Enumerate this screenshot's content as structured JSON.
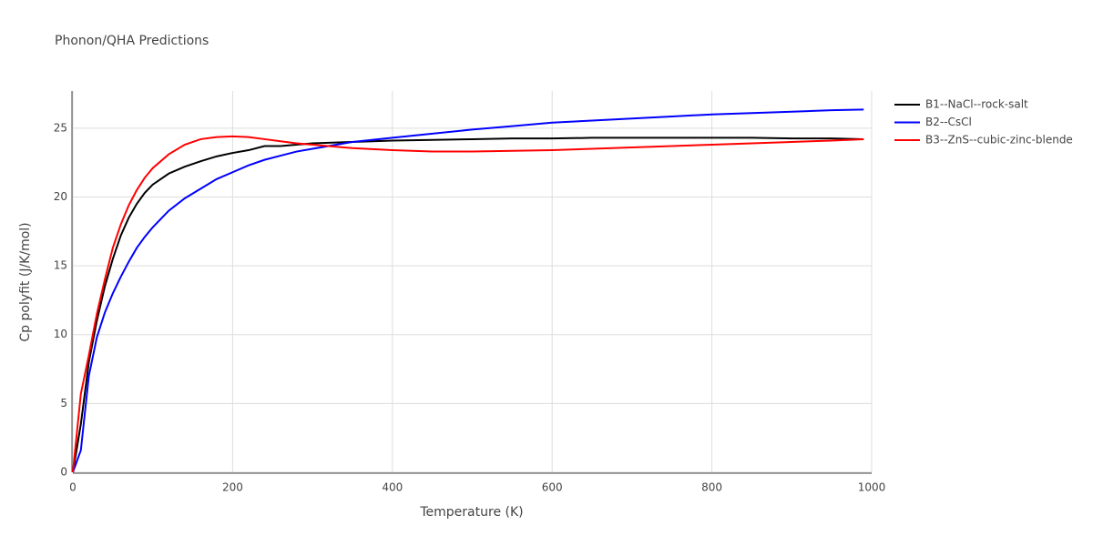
{
  "chart_data": {
    "type": "line",
    "title": "Phonon/QHA Predictions",
    "x_label": "Temperature (K)",
    "y_label": "Cp polyfit (J/K/mol)",
    "x": [
      0,
      10,
      20,
      30,
      40,
      50,
      60,
      70,
      80,
      90,
      100,
      120,
      140,
      160,
      180,
      200,
      220,
      240,
      260,
      280,
      300,
      350,
      400,
      450,
      500,
      550,
      600,
      650,
      700,
      750,
      800,
      850,
      900,
      950,
      990
    ],
    "series": [
      {
        "name": "B1--NaCl--rock-salt",
        "color": "#000000",
        "values": [
          0,
          3.5,
          8,
          11,
          13.5,
          15.5,
          17.2,
          18.5,
          19.5,
          20.3,
          20.9,
          21.7,
          22.2,
          22.6,
          22.95,
          23.2,
          23.4,
          23.7,
          23.7,
          23.8,
          23.9,
          24.0,
          24.1,
          24.15,
          24.2,
          24.25,
          24.25,
          24.3,
          24.3,
          24.3,
          24.3,
          24.3,
          24.25,
          24.25,
          24.2
        ]
      },
      {
        "name": "B2--CsCl",
        "color": "#0000ff",
        "values": [
          0,
          1.6,
          7,
          9.8,
          11.6,
          13,
          14.2,
          15.3,
          16.3,
          17.1,
          17.8,
          19.0,
          19.9,
          20.6,
          21.3,
          21.8,
          22.3,
          22.7,
          23.0,
          23.3,
          23.5,
          24.0,
          24.3,
          24.6,
          24.9,
          25.15,
          25.4,
          25.55,
          25.7,
          25.85,
          26.0,
          26.1,
          26.2,
          26.3,
          26.35
        ]
      },
      {
        "name": "B3--ZnS--cubic-zinc-blende",
        "color": "#ff0000",
        "values": [
          0,
          5.7,
          8.5,
          11.5,
          14,
          16.3,
          18,
          19.4,
          20.5,
          21.4,
          22.1,
          23.1,
          23.8,
          24.2,
          24.35,
          24.4,
          24.35,
          24.2,
          24.05,
          23.9,
          23.8,
          23.55,
          23.4,
          23.3,
          23.3,
          23.35,
          23.4,
          23.5,
          23.6,
          23.7,
          23.8,
          23.9,
          24.0,
          24.1,
          24.2
        ]
      }
    ],
    "xlim": [
      0,
      1000
    ],
    "xticks": [
      0,
      200,
      400,
      600,
      800,
      1000
    ],
    "ylim": [
      0,
      27.7
    ],
    "yticks": [
      0,
      5,
      10,
      15,
      20,
      25
    ],
    "grid": true
  }
}
